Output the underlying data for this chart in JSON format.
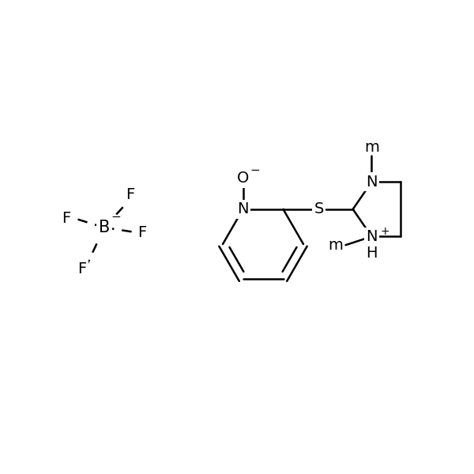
{
  "bg_color": "#ffffff",
  "line_color": "#000000",
  "line_width": 1.8,
  "font_size": 14,
  "font_family": "DejaVu Sans",
  "figsize": [
    6.0,
    6.0
  ],
  "dpi": 100,
  "xlim": [
    0,
    10
  ],
  "ylim": [
    0,
    10
  ]
}
